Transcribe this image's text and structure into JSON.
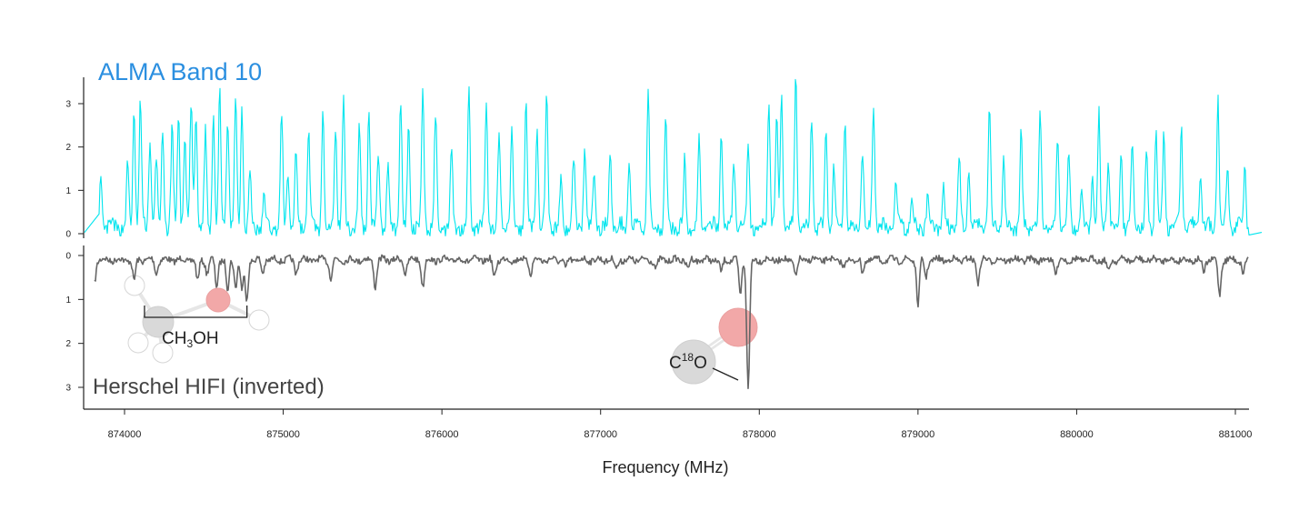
{
  "chart_data": {
    "type": "line",
    "xlabel": "Frequency (MHz)",
    "x_ticks": [
      "874000",
      "875000",
      "876000",
      "877000",
      "878000",
      "879000",
      "880000",
      "881000"
    ],
    "xlim": [
      873800,
      881100
    ],
    "series": [
      {
        "name": "ALMA Band 10",
        "color": "#00e5ee",
        "ylim": [
          0,
          3.5
        ],
        "y_ticks": [
          "0",
          "1",
          "2",
          "3"
        ],
        "baseline": 0.15,
        "peaks": [
          [
            873850,
            1.1
          ],
          [
            874020,
            1.4
          ],
          [
            874060,
            2.7
          ],
          [
            874100,
            2.9
          ],
          [
            874160,
            2.1
          ],
          [
            874200,
            1.6
          ],
          [
            874240,
            2.2
          ],
          [
            874300,
            2.3
          ],
          [
            874340,
            2.6
          ],
          [
            874380,
            2.0
          ],
          [
            874420,
            2.9
          ],
          [
            874450,
            2.7
          ],
          [
            874510,
            2.2
          ],
          [
            874560,
            2.8
          ],
          [
            874600,
            3.05
          ],
          [
            874650,
            2.6
          ],
          [
            874700,
            3.05
          ],
          [
            874740,
            2.9
          ],
          [
            874790,
            1.2
          ],
          [
            874880,
            0.7
          ],
          [
            874990,
            2.6
          ],
          [
            875030,
            1.3
          ],
          [
            875080,
            1.8
          ],
          [
            875160,
            2.3
          ],
          [
            875250,
            2.6
          ],
          [
            875330,
            2.4
          ],
          [
            875380,
            3.1
          ],
          [
            875480,
            2.3
          ],
          [
            875540,
            2.8
          ],
          [
            875600,
            1.8
          ],
          [
            875660,
            1.5
          ],
          [
            875740,
            3.0
          ],
          [
            875790,
            2.3
          ],
          [
            875880,
            3.1
          ],
          [
            875960,
            2.6
          ],
          [
            876060,
            1.9
          ],
          [
            876170,
            3.1
          ],
          [
            876280,
            2.8
          ],
          [
            876360,
            2.1
          ],
          [
            876440,
            2.2
          ],
          [
            876530,
            2.9
          ],
          [
            876600,
            2.4
          ],
          [
            876660,
            3.0
          ],
          [
            876750,
            1.1
          ],
          [
            876830,
            1.6
          ],
          [
            876900,
            1.9
          ],
          [
            876960,
            1.3
          ],
          [
            877060,
            1.8
          ],
          [
            877180,
            1.6
          ],
          [
            877300,
            3.1
          ],
          [
            877410,
            2.5
          ],
          [
            877530,
            1.5
          ],
          [
            877620,
            2.0
          ],
          [
            877760,
            2.2
          ],
          [
            877840,
            1.6
          ],
          [
            877930,
            2.0
          ],
          [
            878060,
            3.1
          ],
          [
            878110,
            2.4
          ],
          [
            878140,
            3.3
          ],
          [
            878230,
            3.5
          ],
          [
            878330,
            2.6
          ],
          [
            878420,
            2.3
          ],
          [
            878470,
            1.4
          ],
          [
            878540,
            2.6
          ],
          [
            878650,
            1.7
          ],
          [
            878720,
            2.9
          ],
          [
            878860,
            1.0
          ],
          [
            878960,
            0.7
          ],
          [
            879060,
            0.6
          ],
          [
            879160,
            0.9
          ],
          [
            879260,
            1.6
          ],
          [
            879320,
            1.3
          ],
          [
            879450,
            2.8
          ],
          [
            879540,
            1.5
          ],
          [
            879650,
            2.2
          ],
          [
            879770,
            2.6
          ],
          [
            879880,
            2.2
          ],
          [
            879950,
            1.6
          ],
          [
            880030,
            0.9
          ],
          [
            880100,
            1.2
          ],
          [
            880200,
            1.6
          ],
          [
            880280,
            1.7
          ],
          [
            880350,
            2.0
          ],
          [
            880440,
            1.7
          ],
          [
            880500,
            2.3
          ],
          [
            880550,
            2.2
          ],
          [
            880660,
            2.3
          ],
          [
            880780,
            1.3
          ],
          [
            880890,
            3.0
          ],
          [
            880950,
            1.4
          ],
          [
            881060,
            1.4
          ],
          [
            880140,
            2.6
          ]
        ]
      },
      {
        "name": "Herschel HIFI (inverted)",
        "color": "#666666",
        "ylim": [
          0,
          3.2
        ],
        "y_ticks": [
          "0",
          "1",
          "2",
          "3"
        ],
        "baseline": 0.1,
        "peaks": [
          [
            873810,
            0.5
          ],
          [
            874060,
            0.5
          ],
          [
            874200,
            0.3
          ],
          [
            874460,
            0.5
          ],
          [
            874520,
            0.3
          ],
          [
            874580,
            0.6
          ],
          [
            874650,
            0.7
          ],
          [
            874700,
            0.6
          ],
          [
            874740,
            0.7
          ],
          [
            874770,
            0.9
          ],
          [
            874870,
            0.3
          ],
          [
            875080,
            0.3
          ],
          [
            875300,
            0.4
          ],
          [
            875580,
            0.6
          ],
          [
            875770,
            0.3
          ],
          [
            875880,
            0.6
          ],
          [
            876330,
            0.4
          ],
          [
            876560,
            0.3
          ],
          [
            876780,
            0.2
          ],
          [
            877100,
            0.2
          ],
          [
            877350,
            0.2
          ],
          [
            877550,
            0.2
          ],
          [
            877760,
            0.3
          ],
          [
            877880,
            0.8
          ],
          [
            877930,
            2.95
          ],
          [
            878230,
            0.4
          ],
          [
            878530,
            0.2
          ],
          [
            878650,
            0.3
          ],
          [
            879000,
            1.0
          ],
          [
            879050,
            0.4
          ],
          [
            879380,
            0.5
          ],
          [
            879870,
            0.3
          ],
          [
            880200,
            0.3
          ],
          [
            880800,
            0.3
          ],
          [
            880900,
            0.8
          ],
          [
            881050,
            0.3
          ]
        ]
      }
    ],
    "annotations": [
      {
        "label": "CH",
        "sub": "3",
        "label_end": "OH",
        "range": [
          874080,
          874760
        ]
      },
      {
        "label": "C",
        "sup": "18",
        "label_end": "O",
        "x": 877930
      }
    ],
    "grid": false,
    "legend": "none"
  }
}
